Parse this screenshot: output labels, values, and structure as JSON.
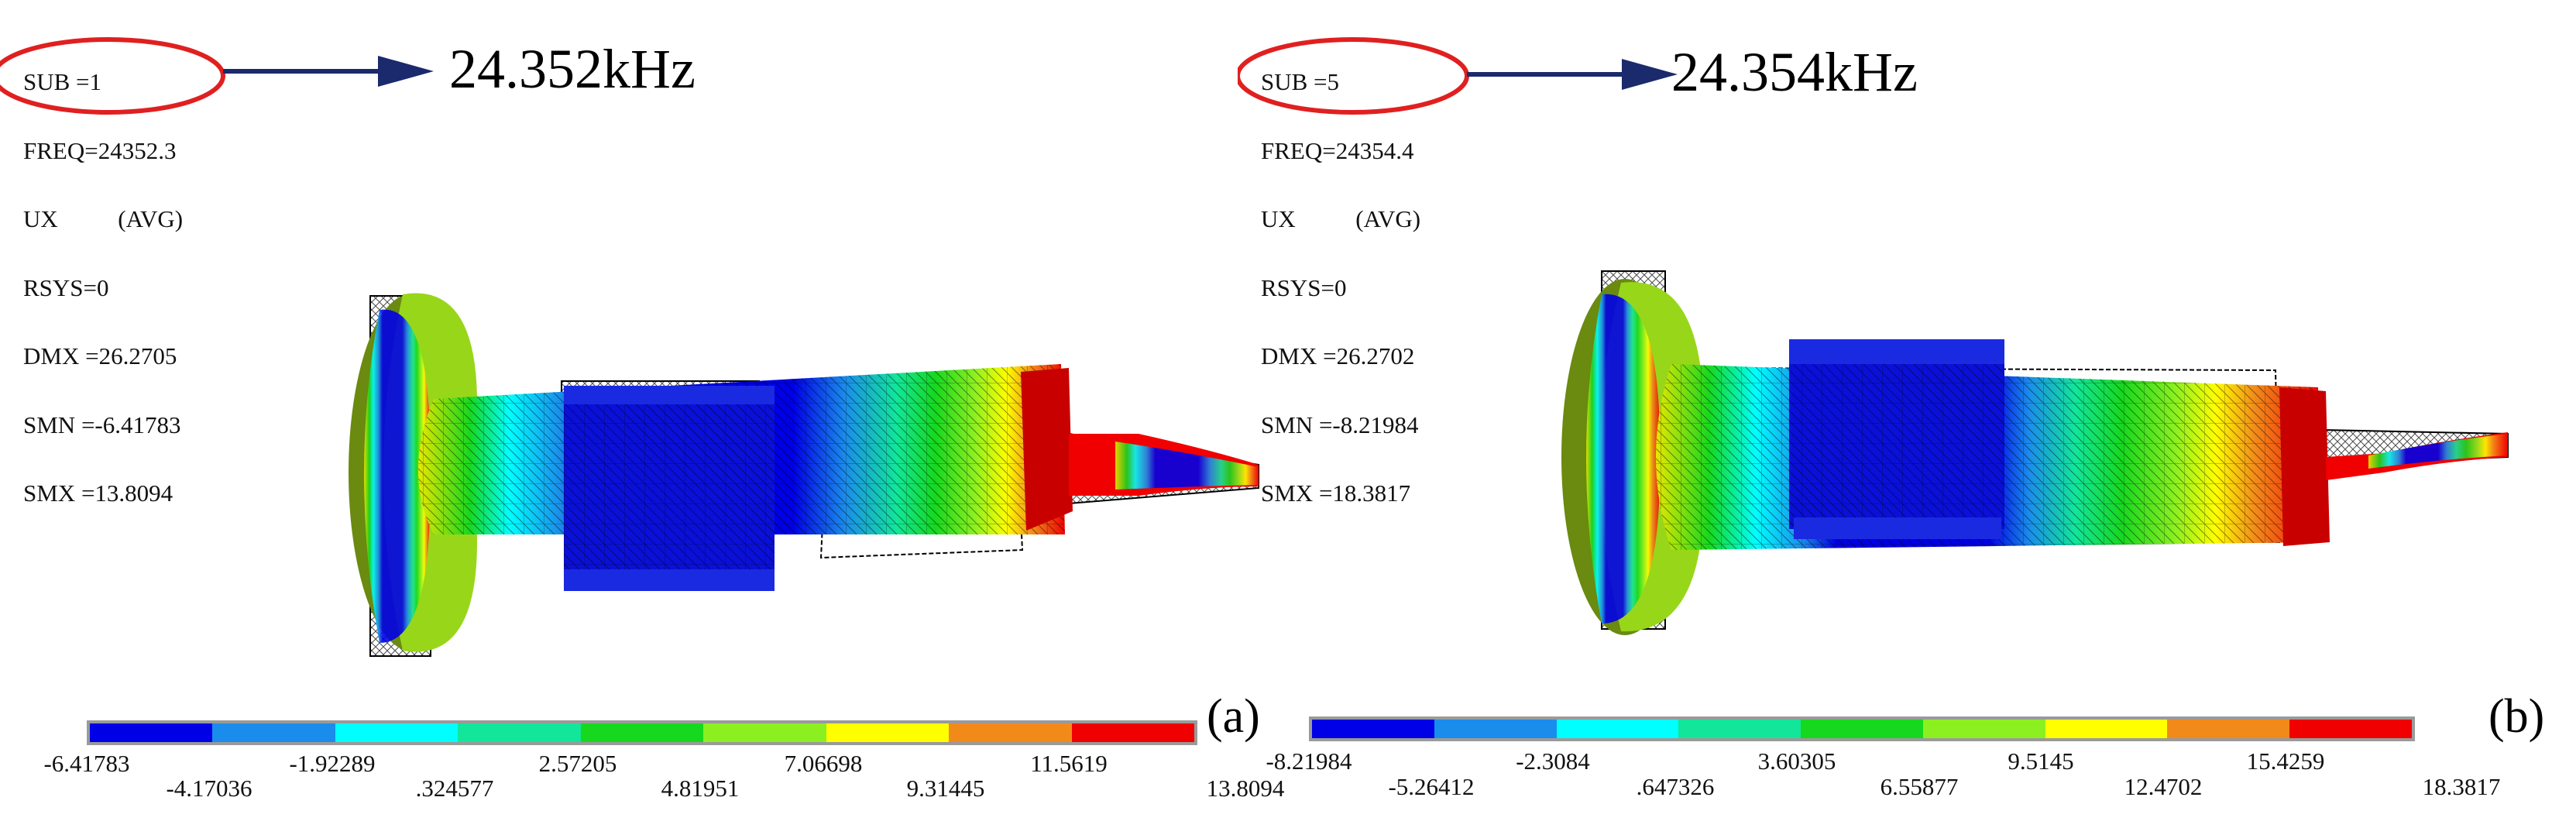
{
  "panels": [
    {
      "id": "a",
      "label": "(a)",
      "info_lines": [
        "SUB =1",
        "FREQ=24352.3",
        "UX          (AVG)",
        "RSYS=0",
        "DMX =26.2705",
        "SMN =-6.41783",
        "SMX =13.8094"
      ],
      "freq_label": "24.352kHz",
      "colorbar": {
        "colors": [
          "#0000e6",
          "#1a8ceb",
          "#00ffff",
          "#12e69a",
          "#16d81e",
          "#8cf020",
          "#ffff00",
          "#f28a1a",
          "#f00000"
        ],
        "ticks_top": [
          "-6.41783",
          "-1.92289",
          "2.57205",
          "7.06698",
          "11.5619"
        ],
        "ticks_bottom": [
          "-4.17036",
          ".324577",
          "4.81951",
          "9.31445",
          "13.8094"
        ]
      }
    },
    {
      "id": "b",
      "label": "(b)",
      "info_lines": [
        "SUB =5",
        "FREQ=24354.4",
        "UX          (AVG)",
        "RSYS=0",
        "DMX =26.2702",
        "SMN =-8.21984",
        "SMX =18.3817"
      ],
      "freq_label": "24.354kHz",
      "colorbar": {
        "colors": [
          "#0000e6",
          "#1a8ceb",
          "#00ffff",
          "#12e69a",
          "#16d81e",
          "#8cf020",
          "#ffff00",
          "#f28a1a",
          "#f00000"
        ],
        "ticks_top": [
          "-8.21984",
          "-2.3084",
          "3.60305",
          "9.5145",
          "15.4259"
        ],
        "ticks_bottom": [
          "-5.26412",
          ".647326",
          "6.55877",
          "12.4702",
          "18.3817"
        ]
      }
    }
  ],
  "colors": {
    "highlight_ellipse": "#e02020",
    "arrow": "#1a2a6c",
    "mesh": "#000000"
  }
}
